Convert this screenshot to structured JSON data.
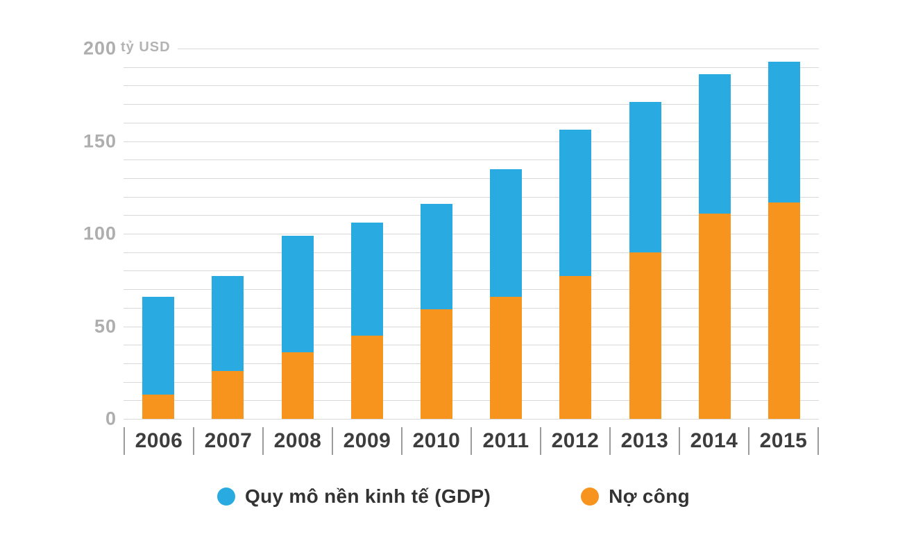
{
  "unit_label": "tỷ USD",
  "legend": {
    "gdp": "Quy mô nền kinh tế (GDP)",
    "debt": "Nợ công"
  },
  "colors": {
    "gdp": "#29ABE2",
    "debt": "#F7941E",
    "gridline": "#d8d8d8",
    "tick_text": "#aeaeae",
    "axis_text": "#3d3d3d"
  },
  "chart_data": {
    "type": "bar",
    "subtype": "overlay-stacked",
    "title": "",
    "xlabel": "",
    "ylabel": "tỷ USD",
    "categories": [
      "2006",
      "2007",
      "2008",
      "2009",
      "2010",
      "2011",
      "2012",
      "2013",
      "2014",
      "2015"
    ],
    "series": [
      {
        "name": "Quy mô nền kinh tế (GDP)",
        "role": "total-bar-height",
        "color": "#29ABE2",
        "values": [
          66,
          77,
          99,
          106,
          116,
          135,
          156,
          171,
          186,
          193
        ]
      },
      {
        "name": "Nợ công",
        "role": "bottom-overlay",
        "color": "#F7941E",
        "values": [
          13,
          26,
          36,
          45,
          59,
          66,
          77,
          90,
          111,
          117
        ]
      }
    ],
    "ylim": [
      0,
      200
    ],
    "yticks": [
      0,
      50,
      100,
      150,
      200
    ],
    "minor_grid_step": 10,
    "grid": true,
    "legend_position": "bottom"
  }
}
